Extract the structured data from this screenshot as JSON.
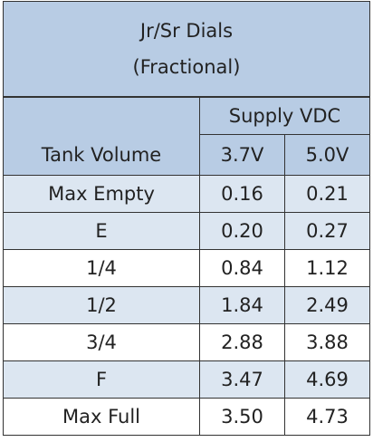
{
  "header": {
    "title": "Jr/Sr Dials",
    "subtitle": "(Fractional)"
  },
  "table": {
    "group_header": "Supply VDC",
    "columns": [
      "Tank Volume",
      "3.7V",
      "5.0V"
    ],
    "rows": [
      [
        "Max Empty",
        "0.16",
        "0.21"
      ],
      [
        "E",
        "0.20",
        "0.27"
      ],
      [
        "1/4",
        "0.84",
        "1.12"
      ],
      [
        "1/2",
        "1.84",
        "2.49"
      ],
      [
        "3/4",
        "2.88",
        "3.88"
      ],
      [
        "F",
        "3.47",
        "4.69"
      ],
      [
        "Max Full",
        "3.50",
        "4.73"
      ]
    ]
  }
}
